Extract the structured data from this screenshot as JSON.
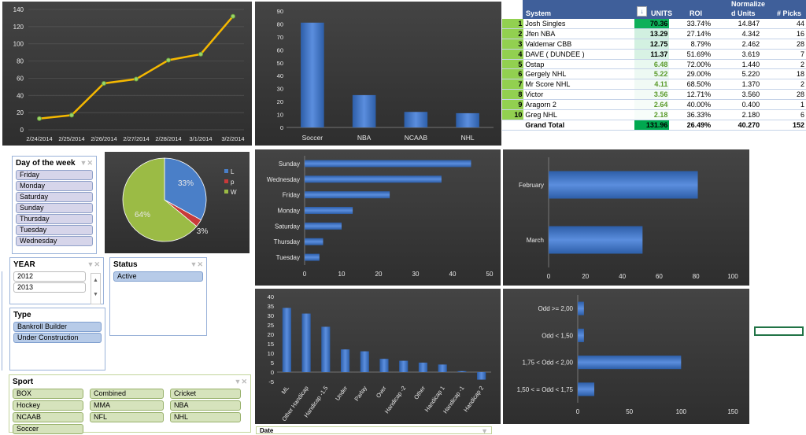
{
  "line_chart": {
    "chart_data": {
      "type": "line",
      "categories": [
        "2/24/2014",
        "2/25/2014",
        "2/26/2014",
        "2/27/2014",
        "2/28/2014",
        "3/1/2014",
        "3/2/2014"
      ],
      "values": [
        13,
        17,
        54,
        59,
        81,
        88,
        132
      ],
      "ylim": [
        0,
        140
      ],
      "yticks": [
        0,
        20,
        40,
        60,
        80,
        100,
        120,
        140
      ],
      "color": "#f5b800"
    }
  },
  "sport_chart": {
    "chart_data": {
      "type": "bar",
      "categories": [
        "Soccer",
        "NBA",
        "NCAAB",
        "NHL"
      ],
      "values": [
        81,
        25,
        12,
        11
      ],
      "ylim": [
        0,
        90
      ],
      "yticks": [
        0,
        10,
        20,
        30,
        40,
        50,
        60,
        70,
        80,
        90
      ]
    }
  },
  "pivot": {
    "headers": {
      "system": "System",
      "units": "UNITS",
      "roi": "ROI",
      "norm1": "Normalize",
      "norm2": "d Units",
      "picks": "# Picks"
    },
    "rows": [
      {
        "rank": "1",
        "system": "Josh Singles",
        "units": "70.36",
        "roi": "33.74%",
        "norm": "14.847",
        "picks": "44"
      },
      {
        "rank": "2",
        "system": "Jfen NBA",
        "units": "13.29",
        "roi": "27.14%",
        "norm": "4.342",
        "picks": "16"
      },
      {
        "rank": "3",
        "system": "Valdemar CBB",
        "units": "12.75",
        "roi": "8.79%",
        "norm": "2.462",
        "picks": "28"
      },
      {
        "rank": "4",
        "system": "DAVE ( DUNDEE )",
        "units": "11.37",
        "roi": "51.69%",
        "norm": "3.619",
        "picks": "7"
      },
      {
        "rank": "5",
        "system": "Ostap",
        "units": "6.48",
        "roi": "72.00%",
        "norm": "1.440",
        "picks": "2"
      },
      {
        "rank": "6",
        "system": "Gergely NHL",
        "units": "5.22",
        "roi": "29.00%",
        "norm": "5.220",
        "picks": "18"
      },
      {
        "rank": "7",
        "system": "Mr Score NHL",
        "units": "4.11",
        "roi": "68.50%",
        "norm": "1.370",
        "picks": "2"
      },
      {
        "rank": "8",
        "system": "Victor",
        "units": "3.56",
        "roi": "12.71%",
        "norm": "3.560",
        "picks": "28"
      },
      {
        "rank": "9",
        "system": "Aragorn 2",
        "units": "2.64",
        "roi": "40.00%",
        "norm": "0.400",
        "picks": "1"
      },
      {
        "rank": "10",
        "system": "Greg NHL",
        "units": "2.18",
        "roi": "36.33%",
        "norm": "2.180",
        "picks": "6"
      }
    ],
    "total": {
      "label": "Grand Total",
      "units": "131.96",
      "roi": "26.49%",
      "norm": "40.270",
      "picks": "152"
    }
  },
  "slicers": {
    "day": {
      "title": "Day of the week",
      "items": [
        "Friday",
        "Monday",
        "Saturday",
        "Sunday",
        "Thursday",
        "Tuesday",
        "Wednesday"
      ]
    },
    "year": {
      "title": "YEAR",
      "items": [
        "2012",
        "2013"
      ]
    },
    "status": {
      "title": "Status",
      "items": [
        "Active"
      ]
    },
    "type": {
      "title": "Type",
      "items": [
        "Bankroll Builder",
        "Under Construction"
      ]
    },
    "sport": {
      "title": "Sport",
      "items": [
        "BOX",
        "Combined",
        "Cricket",
        "Hockey",
        "MMA",
        "NBA",
        "NCAAB",
        "NFL",
        "NHL",
        "Soccer"
      ]
    },
    "date": {
      "title": "Date"
    }
  },
  "pie_chart": {
    "chart_data": {
      "type": "pie",
      "labels": [
        "L",
        "p",
        "W"
      ],
      "values": [
        33,
        3,
        64
      ],
      "value_labels": [
        "33%",
        "3%",
        "64%"
      ],
      "colors": [
        "#4a7fc8",
        "#c83a3a",
        "#9bbb45"
      ],
      "legend": "right"
    }
  },
  "day_chart": {
    "chart_data": {
      "type": "bar",
      "orientation": "horizontal",
      "categories": [
        "Sunday",
        "Wednesday",
        "Friday",
        "Monday",
        "Saturday",
        "Thursday",
        "Tuesday"
      ],
      "values": [
        45,
        37,
        23,
        13,
        10,
        5,
        4
      ],
      "xlim": [
        0,
        50
      ],
      "xticks": [
        0,
        10,
        20,
        30,
        40,
        50
      ]
    }
  },
  "month_chart": {
    "chart_data": {
      "type": "bar",
      "orientation": "horizontal",
      "categories": [
        "February",
        "March"
      ],
      "values": [
        81,
        51
      ],
      "xlim": [
        0,
        100
      ],
      "xticks": [
        0,
        20,
        40,
        60,
        80,
        100
      ]
    }
  },
  "bettype_chart": {
    "chart_data": {
      "type": "bar",
      "categories": [
        "ML",
        "Other Handicap",
        "Handicap -1.5",
        "Under",
        "Parlay",
        "Over",
        "Handicap -2",
        "Other",
        "Handicap 1",
        "Handicap -1",
        "Handicap 2"
      ],
      "values": [
        34,
        31,
        24,
        12,
        11,
        7,
        6,
        5,
        4,
        0.5,
        -4
      ],
      "ylim": [
        -5,
        40
      ],
      "yticks": [
        -5,
        0,
        5,
        10,
        15,
        20,
        25,
        30,
        35,
        40
      ]
    }
  },
  "odds_chart": {
    "chart_data": {
      "type": "bar",
      "orientation": "horizontal",
      "categories": [
        "Odd >= 2,00",
        "Odd < 1,50",
        "1,75 < Odd < 2,00",
        "1,50 < = Odd < 1,75"
      ],
      "values": [
        6,
        6,
        100,
        16
      ],
      "xlim": [
        0,
        150
      ],
      "xticks": [
        0,
        50,
        100,
        150
      ]
    }
  }
}
